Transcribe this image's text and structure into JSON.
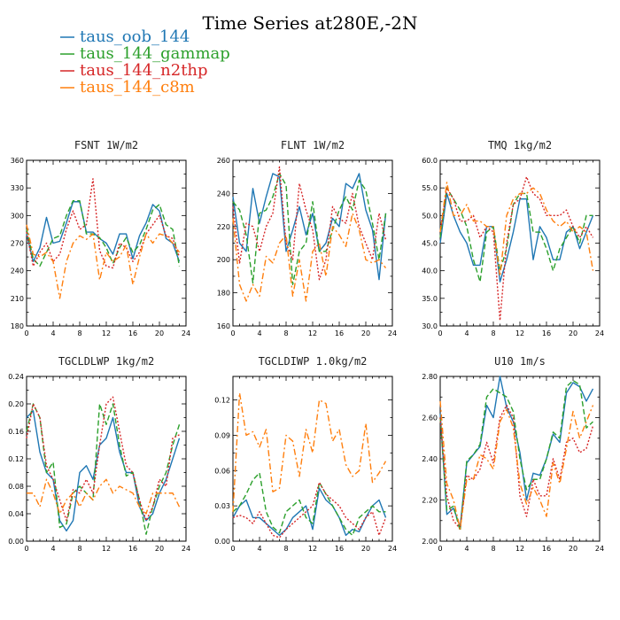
{
  "figure": {
    "title": "Time Series at280E,-2N"
  },
  "legend": [
    {
      "name": "taus_oob_144",
      "color": "#1f77b4",
      "dash": "solid"
    },
    {
      "name": "taus_144_gammap",
      "color": "#2ca02c",
      "dash": "dash"
    },
    {
      "name": "taus_144_n2thp",
      "color": "#d62728",
      "dash": "dot"
    },
    {
      "name": "taus_144_c8m",
      "color": "#ff7f0e",
      "dash": "dashdot"
    }
  ],
  "chart_data": [
    {
      "type": "line",
      "title": "FSNT  1W/m2",
      "xlim": [
        0,
        24
      ],
      "ylim": [
        180,
        360
      ],
      "xticks": [
        0,
        4,
        8,
        12,
        16,
        20,
        24
      ],
      "yticks": [
        180,
        210,
        240,
        270,
        300,
        330,
        360
      ],
      "ytick_labels": [
        "180",
        "210",
        "240",
        "270",
        "300",
        "330",
        "360"
      ],
      "x": [
        0,
        1,
        2,
        3,
        4,
        5,
        6,
        7,
        8,
        9,
        10,
        11,
        12,
        13,
        14,
        15,
        16,
        17,
        18,
        19,
        20,
        21,
        22,
        23
      ],
      "series": [
        {
          "name": "taus_oob_144",
          "values": [
            280,
            250,
            265,
            298,
            270,
            272,
            292,
            315,
            315,
            282,
            282,
            275,
            270,
            258,
            280,
            280,
            253,
            278,
            292,
            312,
            305,
            275,
            270,
            250
          ]
        },
        {
          "name": "taus_144_gammap",
          "values": [
            285,
            253,
            245,
            260,
            275,
            278,
            300,
            316,
            316,
            280,
            280,
            276,
            265,
            248,
            265,
            276,
            260,
            268,
            285,
            306,
            312,
            290,
            285,
            245
          ]
        },
        {
          "name": "taus_144_n2thp",
          "values": [
            282,
            245,
            260,
            270,
            250,
            258,
            285,
            305,
            285,
            290,
            340,
            262,
            245,
            243,
            270,
            265,
            250,
            260,
            280,
            290,
            300,
            278,
            275,
            255
          ]
        },
        {
          "name": "taus_144_c8m",
          "values": [
            290,
            258,
            255,
            260,
            250,
            210,
            250,
            270,
            278,
            274,
            280,
            230,
            260,
            250,
            255,
            268,
            225,
            255,
            280,
            270,
            280,
            278,
            270,
            260
          ]
        }
      ]
    },
    {
      "type": "line",
      "title": "FLNT  1W/m2",
      "xlim": [
        0,
        24
      ],
      "ylim": [
        160,
        260
      ],
      "xticks": [
        0,
        4,
        8,
        12,
        16,
        20,
        24
      ],
      "yticks": [
        160,
        180,
        200,
        220,
        240,
        260
      ],
      "ytick_labels": [
        "160",
        "180",
        "200",
        "220",
        "240",
        "260"
      ],
      "x": [
        0,
        1,
        2,
        3,
        4,
        5,
        6,
        7,
        8,
        9,
        10,
        11,
        12,
        13,
        14,
        15,
        16,
        17,
        18,
        19,
        20,
        21,
        22,
        23
      ],
      "series": [
        {
          "name": "taus_oob_144",
          "values": [
            238,
            210,
            205,
            243,
            222,
            238,
            252,
            250,
            205,
            218,
            232,
            215,
            228,
            205,
            210,
            225,
            220,
            246,
            243,
            252,
            230,
            218,
            188,
            228
          ]
        },
        {
          "name": "taus_144_gammap",
          "values": [
            235,
            230,
            215,
            186,
            228,
            230,
            238,
            252,
            245,
            185,
            205,
            210,
            235,
            205,
            205,
            218,
            230,
            238,
            230,
            248,
            242,
            222,
            200,
            228
          ]
        },
        {
          "name": "taus_144_n2thp",
          "values": [
            232,
            198,
            222,
            220,
            205,
            220,
            228,
            256,
            210,
            200,
            246,
            230,
            218,
            188,
            200,
            232,
            225,
            222,
            240,
            220,
            210,
            200,
            228,
            212
          ]
        },
        {
          "name": "taus_144_c8m",
          "values": [
            225,
            185,
            175,
            185,
            178,
            202,
            198,
            210,
            215,
            178,
            200,
            175,
            205,
            210,
            190,
            220,
            215,
            208,
            228,
            218,
            200,
            198,
            200,
            195
          ]
        }
      ]
    },
    {
      "type": "line",
      "title": "TMQ  1kg/m2",
      "xlim": [
        0,
        24
      ],
      "ylim": [
        30,
        60
      ],
      "xticks": [
        0,
        4,
        8,
        12,
        16,
        20,
        24
      ],
      "yticks": [
        30,
        35,
        40,
        45,
        50,
        55,
        60
      ],
      "ytick_labels": [
        "30.0",
        "35.0",
        "40.0",
        "45.0",
        "50.0",
        "55.0",
        "60.0"
      ],
      "x": [
        0,
        1,
        2,
        3,
        4,
        5,
        6,
        7,
        8,
        9,
        10,
        11,
        12,
        13,
        14,
        15,
        16,
        17,
        18,
        19,
        20,
        21,
        22,
        23
      ],
      "series": [
        {
          "name": "taus_oob_144",
          "values": [
            45,
            54,
            50,
            47,
            45,
            41,
            41,
            48,
            48,
            38,
            42,
            47,
            53,
            53,
            42,
            48,
            46,
            42,
            42,
            47,
            48,
            44,
            47,
            50
          ]
        },
        {
          "name": "taus_144_gammap",
          "values": [
            46,
            55,
            53,
            51,
            48,
            42,
            38,
            47,
            48,
            40,
            44,
            52,
            54,
            54,
            47,
            47,
            44,
            40,
            44,
            46,
            48,
            45,
            50,
            50
          ]
        },
        {
          "name": "taus_144_n2thp",
          "values": [
            47,
            55,
            53,
            49,
            49,
            50,
            46,
            48,
            47,
            31,
            45,
            52,
            53,
            57,
            54,
            53,
            50,
            50,
            50,
            51,
            48,
            46,
            48,
            46
          ]
        },
        {
          "name": "taus_144_c8m",
          "values": [
            47,
            56,
            50,
            50,
            52,
            49,
            49,
            48,
            48,
            39,
            50,
            53,
            54,
            54,
            55,
            54,
            51,
            49,
            48,
            49,
            47,
            48,
            47,
            40
          ]
        }
      ]
    },
    {
      "type": "line",
      "title": "TGCLDLWP  1kg/m2",
      "xlim": [
        0,
        24
      ],
      "ylim": [
        0,
        0.24
      ],
      "xticks": [
        0,
        4,
        8,
        12,
        16,
        20,
        24
      ],
      "yticks": [
        0,
        0.04,
        0.08,
        0.12,
        0.16,
        0.2,
        0.24
      ],
      "ytick_labels": [
        "0.00",
        "0.04",
        "0.08",
        "0.12",
        "0.16",
        "0.20",
        "0.24"
      ],
      "x": [
        0,
        1,
        2,
        3,
        4,
        5,
        6,
        7,
        8,
        9,
        10,
        11,
        12,
        13,
        14,
        15,
        16,
        17,
        18,
        19,
        20,
        21,
        22,
        23
      ],
      "series": [
        {
          "name": "taus_oob_144",
          "values": [
            0.18,
            0.19,
            0.13,
            0.1,
            0.09,
            0.03,
            0.015,
            0.03,
            0.1,
            0.11,
            0.09,
            0.14,
            0.15,
            0.18,
            0.13,
            0.1,
            0.1,
            0.05,
            0.03,
            0.04,
            0.07,
            0.09,
            0.12,
            0.15
          ]
        },
        {
          "name": "taus_144_gammap",
          "values": [
            0.16,
            0.2,
            0.18,
            0.1,
            0.115,
            0.02,
            0.025,
            0.07,
            0.08,
            0.07,
            0.06,
            0.2,
            0.17,
            0.2,
            0.14,
            0.095,
            0.1,
            0.06,
            0.01,
            0.05,
            0.08,
            0.1,
            0.14,
            0.17
          ]
        },
        {
          "name": "taus_144_n2thp",
          "values": [
            0.15,
            0.2,
            0.18,
            0.11,
            0.09,
            0.06,
            0.03,
            0.075,
            0.07,
            0.09,
            0.07,
            0.14,
            0.2,
            0.21,
            0.16,
            0.11,
            0.1,
            0.06,
            0.03,
            0.05,
            0.09,
            0.08,
            0.15,
            0.155
          ]
        },
        {
          "name": "taus_144_c8m",
          "values": [
            0.07,
            0.07,
            0.05,
            0.09,
            0.07,
            0.04,
            0.06,
            0.07,
            0.05,
            0.07,
            0.06,
            0.08,
            0.09,
            0.07,
            0.08,
            0.075,
            0.07,
            0.05,
            0.04,
            0.07,
            0.07,
            0.07,
            0.07,
            0.05
          ]
        }
      ]
    },
    {
      "type": "line",
      "title": "TGCLDIWP  1.0kg/m2",
      "xlim": [
        0,
        24
      ],
      "ylim": [
        0,
        0.14
      ],
      "xticks": [
        0,
        4,
        8,
        12,
        16,
        20,
        24
      ],
      "yticks": [
        0,
        0.03,
        0.06,
        0.09,
        0.12
      ],
      "ytick_labels": [
        "0.00",
        "0.03",
        "0.06",
        "0.09",
        "0.12"
      ],
      "x": [
        0,
        1,
        2,
        3,
        4,
        5,
        6,
        7,
        8,
        9,
        10,
        11,
        12,
        13,
        14,
        15,
        16,
        17,
        18,
        19,
        20,
        21,
        22,
        23
      ],
      "series": [
        {
          "name": "taus_oob_144",
          "values": [
            0.02,
            0.03,
            0.035,
            0.02,
            0.02,
            0.015,
            0.01,
            0.005,
            0.01,
            0.02,
            0.025,
            0.03,
            0.01,
            0.045,
            0.035,
            0.03,
            0.02,
            0.005,
            0.01,
            0.008,
            0.02,
            0.03,
            0.035,
            0.02
          ]
        },
        {
          "name": "taus_144_gammap",
          "values": [
            0.025,
            0.03,
            0.04,
            0.052,
            0.058,
            0.025,
            0.012,
            0.007,
            0.025,
            0.03,
            0.035,
            0.02,
            0.015,
            0.05,
            0.04,
            0.03,
            0.02,
            0.01,
            0.005,
            0.02,
            0.025,
            0.03,
            0.025,
            0.025
          ]
        },
        {
          "name": "taus_144_n2thp",
          "values": [
            0.02,
            0.022,
            0.02,
            0.015,
            0.025,
            0.015,
            0.005,
            0.003,
            0.01,
            0.015,
            0.02,
            0.025,
            0.03,
            0.05,
            0.04,
            0.035,
            0.03,
            0.02,
            0.015,
            0.01,
            0.02,
            0.025,
            0.005,
            0.02
          ]
        },
        {
          "name": "taus_144_c8m",
          "values": [
            0.025,
            0.126,
            0.09,
            0.093,
            0.08,
            0.095,
            0.042,
            0.045,
            0.09,
            0.085,
            0.055,
            0.095,
            0.075,
            0.12,
            0.117,
            0.085,
            0.095,
            0.065,
            0.055,
            0.06,
            0.1,
            0.05,
            0.058,
            0.068
          ]
        }
      ]
    },
    {
      "type": "line",
      "title": "U10  1m/s",
      "xlim": [
        0,
        24
      ],
      "ylim": [
        2.0,
        2.8
      ],
      "xticks": [
        0,
        4,
        8,
        12,
        16,
        20,
        24
      ],
      "yticks": [
        2.0,
        2.2,
        2.4,
        2.6,
        2.8
      ],
      "ytick_labels": [
        "2.00",
        "2.20",
        "2.40",
        "2.60",
        "2.80"
      ],
      "x": [
        0,
        1,
        2,
        3,
        4,
        5,
        6,
        7,
        8,
        9,
        10,
        11,
        12,
        13,
        14,
        15,
        16,
        17,
        18,
        19,
        20,
        21,
        22,
        23
      ],
      "series": [
        {
          "name": "taus_oob_144",
          "values": [
            2.62,
            2.13,
            2.16,
            2.07,
            2.38,
            2.42,
            2.46,
            2.66,
            2.6,
            2.8,
            2.65,
            2.58,
            2.43,
            2.2,
            2.33,
            2.32,
            2.4,
            2.52,
            2.48,
            2.72,
            2.77,
            2.75,
            2.68,
            2.74
          ]
        },
        {
          "name": "taus_144_gammap",
          "values": [
            2.6,
            2.15,
            2.17,
            2.05,
            2.39,
            2.42,
            2.47,
            2.7,
            2.74,
            2.72,
            2.7,
            2.63,
            2.4,
            2.25,
            2.3,
            2.3,
            2.4,
            2.53,
            2.5,
            2.75,
            2.78,
            2.76,
            2.55,
            2.58
          ]
        },
        {
          "name": "taus_144_n2thp",
          "values": [
            2.6,
            2.22,
            2.1,
            2.06,
            2.32,
            2.3,
            2.35,
            2.48,
            2.38,
            2.6,
            2.66,
            2.6,
            2.22,
            2.12,
            2.3,
            2.22,
            2.22,
            2.4,
            2.3,
            2.48,
            2.5,
            2.43,
            2.45,
            2.56
          ]
        },
        {
          "name": "taus_144_c8m",
          "values": [
            2.68,
            2.28,
            2.2,
            2.06,
            2.3,
            2.3,
            2.42,
            2.4,
            2.35,
            2.58,
            2.64,
            2.55,
            2.28,
            2.18,
            2.26,
            2.2,
            2.12,
            2.38,
            2.28,
            2.45,
            2.63,
            2.5,
            2.58,
            2.66
          ]
        }
      ]
    }
  ]
}
